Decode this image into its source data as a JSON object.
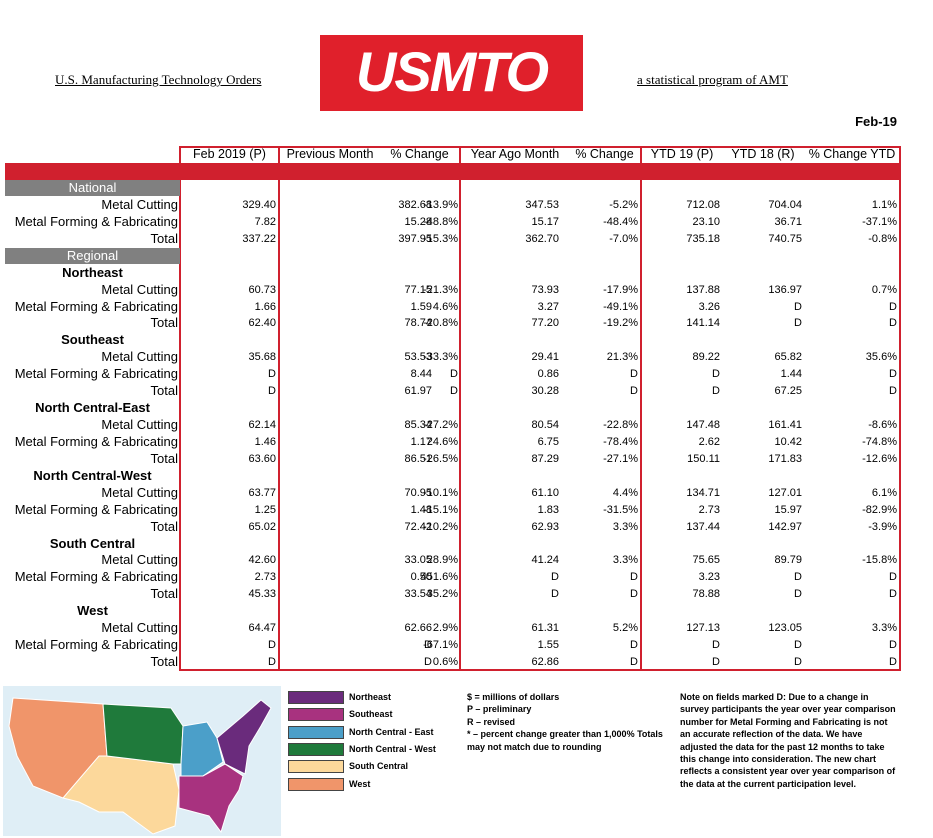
{
  "header": {
    "left": "U.S. Manufacturing Technology Orders",
    "logo": "USMTO",
    "right": "a statistical program of AMT",
    "date": "Feb-19"
  },
  "table": {
    "columns": [
      "Feb 2019 (P)",
      "Previous Month",
      "% Change",
      "Year Ago Month",
      "% Change",
      "YTD 19 (P)",
      "YTD 18 (R)",
      "% Change YTD"
    ],
    "sections": [
      {
        "title": "National",
        "rows": [
          {
            "label": "Metal Cutting",
            "cells": [
              "329.40",
              "382.68",
              "-13.9%",
              "347.53",
              "-5.2%",
              "712.08",
              "704.04",
              "1.1%"
            ]
          },
          {
            "label": "Metal Forming & Fabricating",
            "cells": [
              "7.82",
              "15.28",
              "-48.8%",
              "15.17",
              "-48.4%",
              "23.10",
              "36.71",
              "-37.1%"
            ]
          },
          {
            "label": "Total",
            "cells": [
              "337.22",
              "397.95",
              "-15.3%",
              "362.70",
              "-7.0%",
              "735.18",
              "740.75",
              "-0.8%"
            ]
          }
        ]
      },
      {
        "title": "Regional",
        "regions": [
          {
            "name": "Northeast",
            "rows": [
              {
                "label": "Metal Cutting",
                "cells": [
                  "60.73",
                  "77.15",
                  "-21.3%",
                  "73.93",
                  "-17.9%",
                  "137.88",
                  "136.97",
                  "0.7%"
                ]
              },
              {
                "label": "Metal Forming & Fabricating",
                "cells": [
                  "1.66",
                  "1.59",
                  "4.6%",
                  "3.27",
                  "-49.1%",
                  "3.26",
                  "D",
                  "D"
                ]
              },
              {
                "label": "Total",
                "cells": [
                  "62.40",
                  "78.74",
                  "-20.8%",
                  "77.20",
                  "-19.2%",
                  "141.14",
                  "D",
                  "D"
                ]
              }
            ]
          },
          {
            "name": "Southeast",
            "rows": [
              {
                "label": "Metal Cutting",
                "cells": [
                  "35.68",
                  "53.53",
                  "-33.3%",
                  "29.41",
                  "21.3%",
                  "89.22",
                  "65.82",
                  "35.6%"
                ]
              },
              {
                "label": "Metal Forming & Fabricating",
                "cells": [
                  "D",
                  "8.44",
                  "D",
                  "0.86",
                  "D",
                  "D",
                  "1.44",
                  "D"
                ]
              },
              {
                "label": "Total",
                "cells": [
                  "D",
                  "61.97",
                  "D",
                  "30.28",
                  "D",
                  "D",
                  "67.25",
                  "D"
                ]
              }
            ]
          },
          {
            "name": "North Central-East",
            "rows": [
              {
                "label": "Metal Cutting",
                "cells": [
                  "62.14",
                  "85.34",
                  "-27.2%",
                  "80.54",
                  "-22.8%",
                  "147.48",
                  "161.41",
                  "-8.6%"
                ]
              },
              {
                "label": "Metal Forming & Fabricating",
                "cells": [
                  "1.46",
                  "1.17",
                  "24.6%",
                  "6.75",
                  "-78.4%",
                  "2.62",
                  "10.42",
                  "-74.8%"
                ]
              },
              {
                "label": "Total",
                "cells": [
                  "63.60",
                  "86.51",
                  "-26.5%",
                  "87.29",
                  "-27.1%",
                  "150.11",
                  "171.83",
                  "-12.6%"
                ]
              }
            ]
          },
          {
            "name": "North Central-West",
            "rows": [
              {
                "label": "Metal Cutting",
                "cells": [
                  "63.77",
                  "70.95",
                  "-10.1%",
                  "61.10",
                  "4.4%",
                  "134.71",
                  "127.01",
                  "6.1%"
                ]
              },
              {
                "label": "Metal Forming & Fabricating",
                "cells": [
                  "1.25",
                  "1.48",
                  "-15.1%",
                  "1.83",
                  "-31.5%",
                  "2.73",
                  "15.97",
                  "-82.9%"
                ]
              },
              {
                "label": "Total",
                "cells": [
                  "65.02",
                  "72.42",
                  "-10.2%",
                  "62.93",
                  "3.3%",
                  "137.44",
                  "142.97",
                  "-3.9%"
                ]
              }
            ]
          },
          {
            "name": "South Central",
            "rows": [
              {
                "label": "Metal Cutting",
                "cells": [
                  "42.60",
                  "33.05",
                  "28.9%",
                  "41.24",
                  "3.3%",
                  "75.65",
                  "89.79",
                  "-15.8%"
                ]
              },
              {
                "label": "Metal Forming & Fabricating",
                "cells": [
                  "2.73",
                  "0.50",
                  "451.6%",
                  "D",
                  "D",
                  "3.23",
                  "D",
                  "D"
                ]
              },
              {
                "label": "Total",
                "cells": [
                  "45.33",
                  "33.54",
                  "35.2%",
                  "D",
                  "D",
                  "78.88",
                  "D",
                  "D"
                ]
              }
            ]
          },
          {
            "name": "West",
            "rows": [
              {
                "label": "Metal Cutting",
                "cells": [
                  "64.47",
                  "62.66",
                  "2.9%",
                  "61.31",
                  "5.2%",
                  "127.13",
                  "123.05",
                  "3.3%"
                ]
              },
              {
                "label": "Metal Forming & Fabricating",
                "cells": [
                  "D",
                  "D",
                  "-67.1%",
                  "1.55",
                  "D",
                  "D",
                  "D",
                  "D"
                ]
              },
              {
                "label": "Total",
                "cells": [
                  "D",
                  "D",
                  "0.6%",
                  "62.86",
                  "D",
                  "D",
                  "D",
                  "D"
                ]
              }
            ]
          }
        ]
      }
    ]
  },
  "legend": [
    {
      "label": "Northeast",
      "color": "#6a2b7c"
    },
    {
      "label": "Southeast",
      "color": "#a8327f"
    },
    {
      "label": "North Central - East",
      "color": "#4b9fc9"
    },
    {
      "label": "North Central - West",
      "color": "#1f7a3b"
    },
    {
      "label": "South Central",
      "color": "#fcd89b"
    },
    {
      "label": "West",
      "color": "#f0956a"
    }
  ],
  "notes": [
    "$ = millions of dollars",
    "P – preliminary",
    "R – revised",
    "* – percent change greater than 1,000% Totals may not match due to rounding"
  ],
  "d_note": "Note on fields marked D: Due to a change in survey participants the year over year comparison number for Metal Forming and Fabricating is not an accurate reflection of the data. We have adjusted the data for the past 12 months to take this change into consideration. The new chart reflects a consistent year over year comparison of the data at the current participation level."
}
